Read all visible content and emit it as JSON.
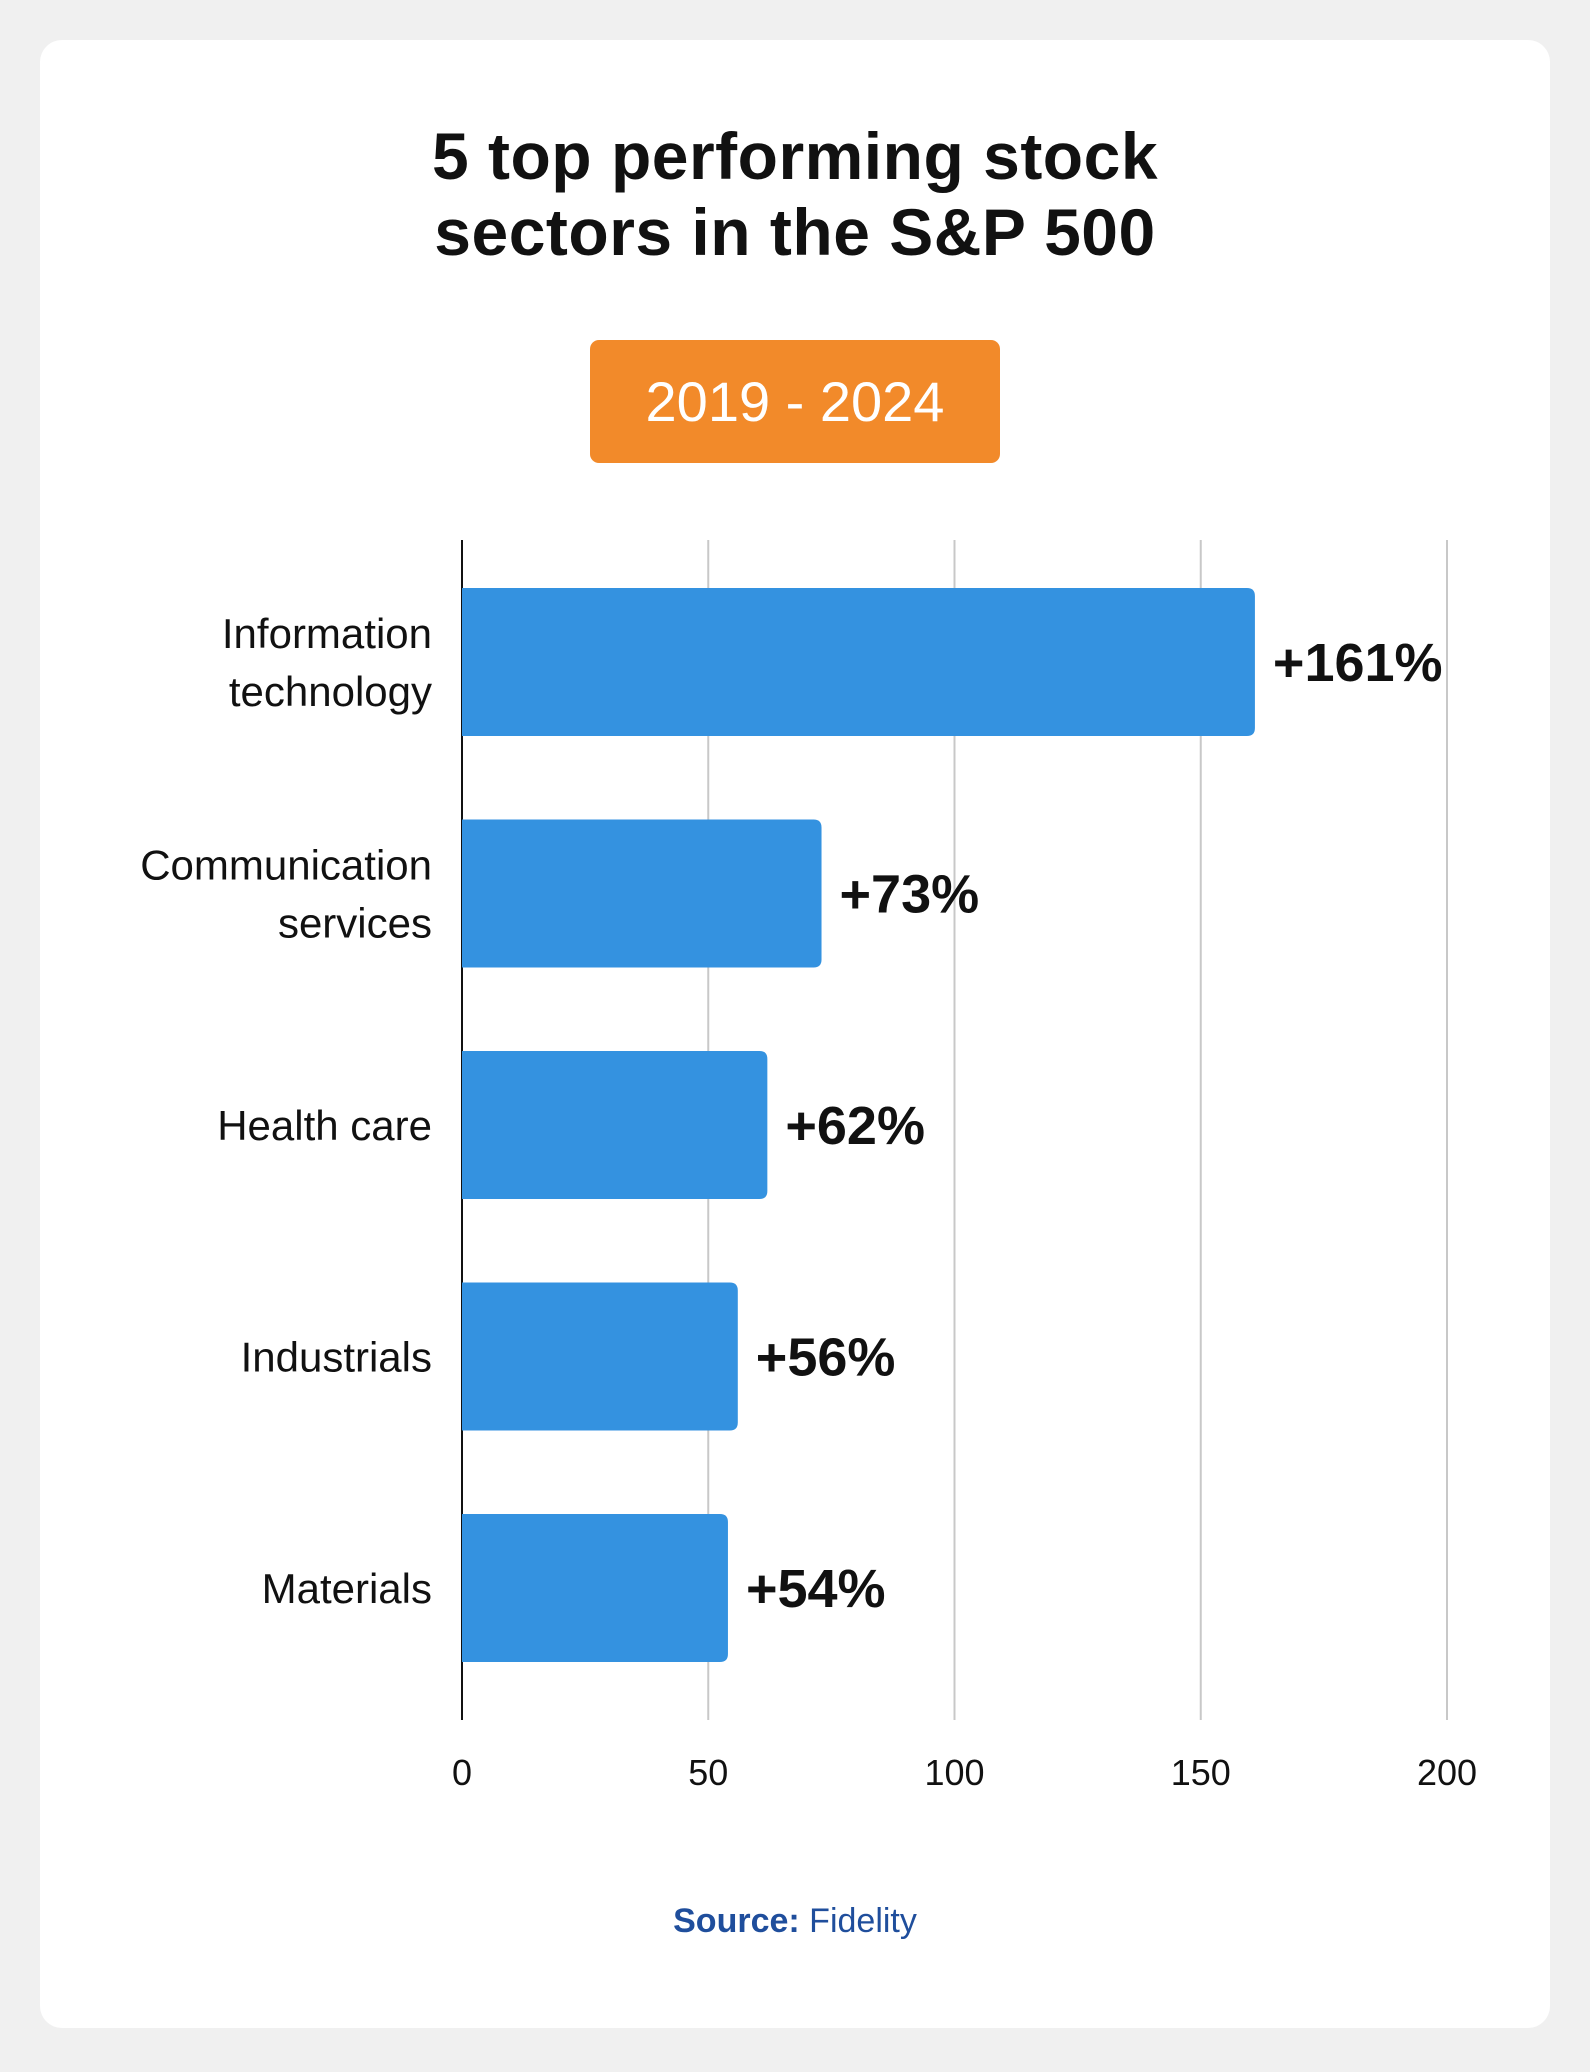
{
  "title_lines": [
    "5 top performing stock",
    "sectors in the S&P 500"
  ],
  "period": "2019 - 2024",
  "source": {
    "label": "Source:",
    "value": "Fidelity"
  },
  "colors": {
    "bar": "#3492e0",
    "badge": "#f28a2a",
    "source": "#1f4e9c",
    "grid": "#c8c8c8",
    "axis": "#111111"
  },
  "chart_data": {
    "type": "bar",
    "orientation": "horizontal",
    "categories": [
      [
        "Information",
        "technology"
      ],
      [
        "Communication",
        "services"
      ],
      [
        "Health care"
      ],
      [
        "Industrials"
      ],
      [
        "Materials"
      ]
    ],
    "values": [
      161,
      73,
      62,
      56,
      54
    ],
    "value_labels": [
      "+161%",
      "+73%",
      "+62%",
      "+56%",
      "+54%"
    ],
    "xlim": [
      0,
      200
    ],
    "xticks": [
      "0",
      "50",
      "100",
      "150",
      "200"
    ],
    "grid": true
  }
}
